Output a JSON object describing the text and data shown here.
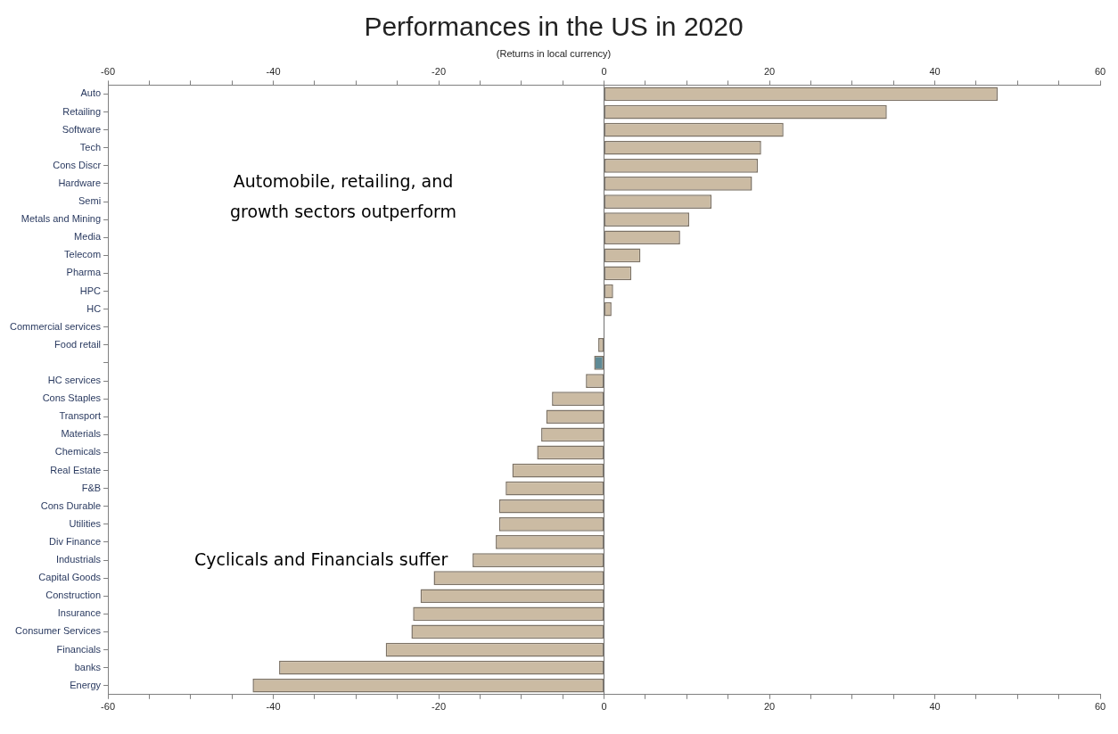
{
  "chart_data": {
    "type": "bar",
    "orientation": "horizontal",
    "title": "Performances in the US in 2020",
    "subtitle": "(Returns in local currency)",
    "categories": [
      "Auto",
      "Retailing",
      "Software",
      "Tech",
      "Cons Discr",
      "Hardware",
      "Semi",
      "Metals and Mining",
      "Media",
      "Telecom",
      "Pharma",
      "HPC",
      "HC",
      "Commercial services",
      "Food retail",
      null,
      "HC services",
      "Cons Staples",
      "Transport",
      "Materials",
      "Chemicals",
      "Real Estate",
      "F&B",
      "Cons Durable",
      "Utilities",
      "Div Finance",
      "Industrials",
      "Capital Goods",
      "Construction",
      "Insurance",
      "Consumer Services",
      "Financials",
      "banks",
      "Energy"
    ],
    "values": [
      47.6,
      34.2,
      21.7,
      19.0,
      18.6,
      17.9,
      13.0,
      10.3,
      9.2,
      4.4,
      3.3,
      1.1,
      0.9,
      null,
      -0.7,
      -1.2,
      -2.2,
      -6.3,
      -7.0,
      -7.6,
      -8.1,
      -11.1,
      -11.9,
      -12.7,
      -12.7,
      -13.1,
      -15.9,
      -20.6,
      -22.2,
      -23.1,
      -23.3,
      -26.4,
      -39.3,
      -42.5
    ],
    "colors": [
      "#cbbba3",
      "#cbbba3",
      "#cbbba3",
      "#cbbba3",
      "#cbbba3",
      "#cbbba3",
      "#cbbba3",
      "#cbbba3",
      "#cbbba3",
      "#cbbba3",
      "#cbbba3",
      "#cbbba3",
      "#cbbba3",
      "#cbbba3",
      "#cbbba3",
      "#5f8a95",
      "#cbbba3",
      "#cbbba3",
      "#cbbba3",
      "#cbbba3",
      "#cbbba3",
      "#cbbba3",
      "#cbbba3",
      "#cbbba3",
      "#cbbba3",
      "#cbbba3",
      "#cbbba3",
      "#cbbba3",
      "#cbbba3",
      "#cbbba3",
      "#cbbba3",
      "#cbbba3",
      "#cbbba3",
      "#cbbba3"
    ],
    "xlim": [
      -60,
      60
    ],
    "xticks": [
      -60,
      {
        "value": -55,
        "label": null
      },
      {
        "value": -50,
        "label": null
      },
      {
        "value": -45,
        "label": null
      },
      -40,
      {
        "value": -35,
        "label": null
      },
      {
        "value": -30,
        "label": null
      },
      {
        "value": -25,
        "label": null
      },
      -20,
      {
        "value": -15,
        "label": null
      },
      {
        "value": -10,
        "label": null
      },
      {
        "value": -5,
        "label": null
      },
      0,
      {
        "value": 5,
        "label": null
      },
      {
        "value": 10,
        "label": null
      },
      {
        "value": 15,
        "label": null
      },
      20,
      {
        "value": 25,
        "label": null
      },
      {
        "value": 30,
        "label": null
      },
      {
        "value": 35,
        "label": null
      },
      40,
      {
        "value": 45,
        "label": null
      },
      {
        "value": 50,
        "label": null
      },
      {
        "value": 55,
        "label": null
      },
      60
    ],
    "x2lim": [
      -60,
      60
    ],
    "x2ticks": [
      -60,
      {
        "value": -55,
        "label": null
      },
      {
        "value": -50,
        "label": null
      },
      {
        "value": -45,
        "label": null
      },
      -40,
      {
        "value": -35,
        "label": null
      },
      {
        "value": -30,
        "label": null
      },
      {
        "value": -25,
        "label": null
      },
      -20,
      {
        "value": -15,
        "label": null
      },
      {
        "value": -10,
        "label": null
      },
      {
        "value": -5,
        "label": null
      },
      0,
      {
        "value": 5,
        "label": null
      },
      {
        "value": 10,
        "label": null
      },
      {
        "value": 15,
        "label": null
      },
      20,
      {
        "value": 25,
        "label": null
      },
      {
        "value": 30,
        "label": null
      },
      {
        "value": 35,
        "label": null
      },
      40,
      {
        "value": 45,
        "label": null
      },
      {
        "value": 50,
        "label": null
      },
      {
        "value": 55,
        "label": null
      },
      60
    ],
    "grid": false,
    "legend": false,
    "ref_lines": [
      {
        "axis": "x",
        "value": 0,
        "color": "#707070"
      }
    ],
    "annotations": [
      "Automobile, retailing, and growth sectors outperform",
      "Cyclicals and Financials suffer"
    ]
  }
}
